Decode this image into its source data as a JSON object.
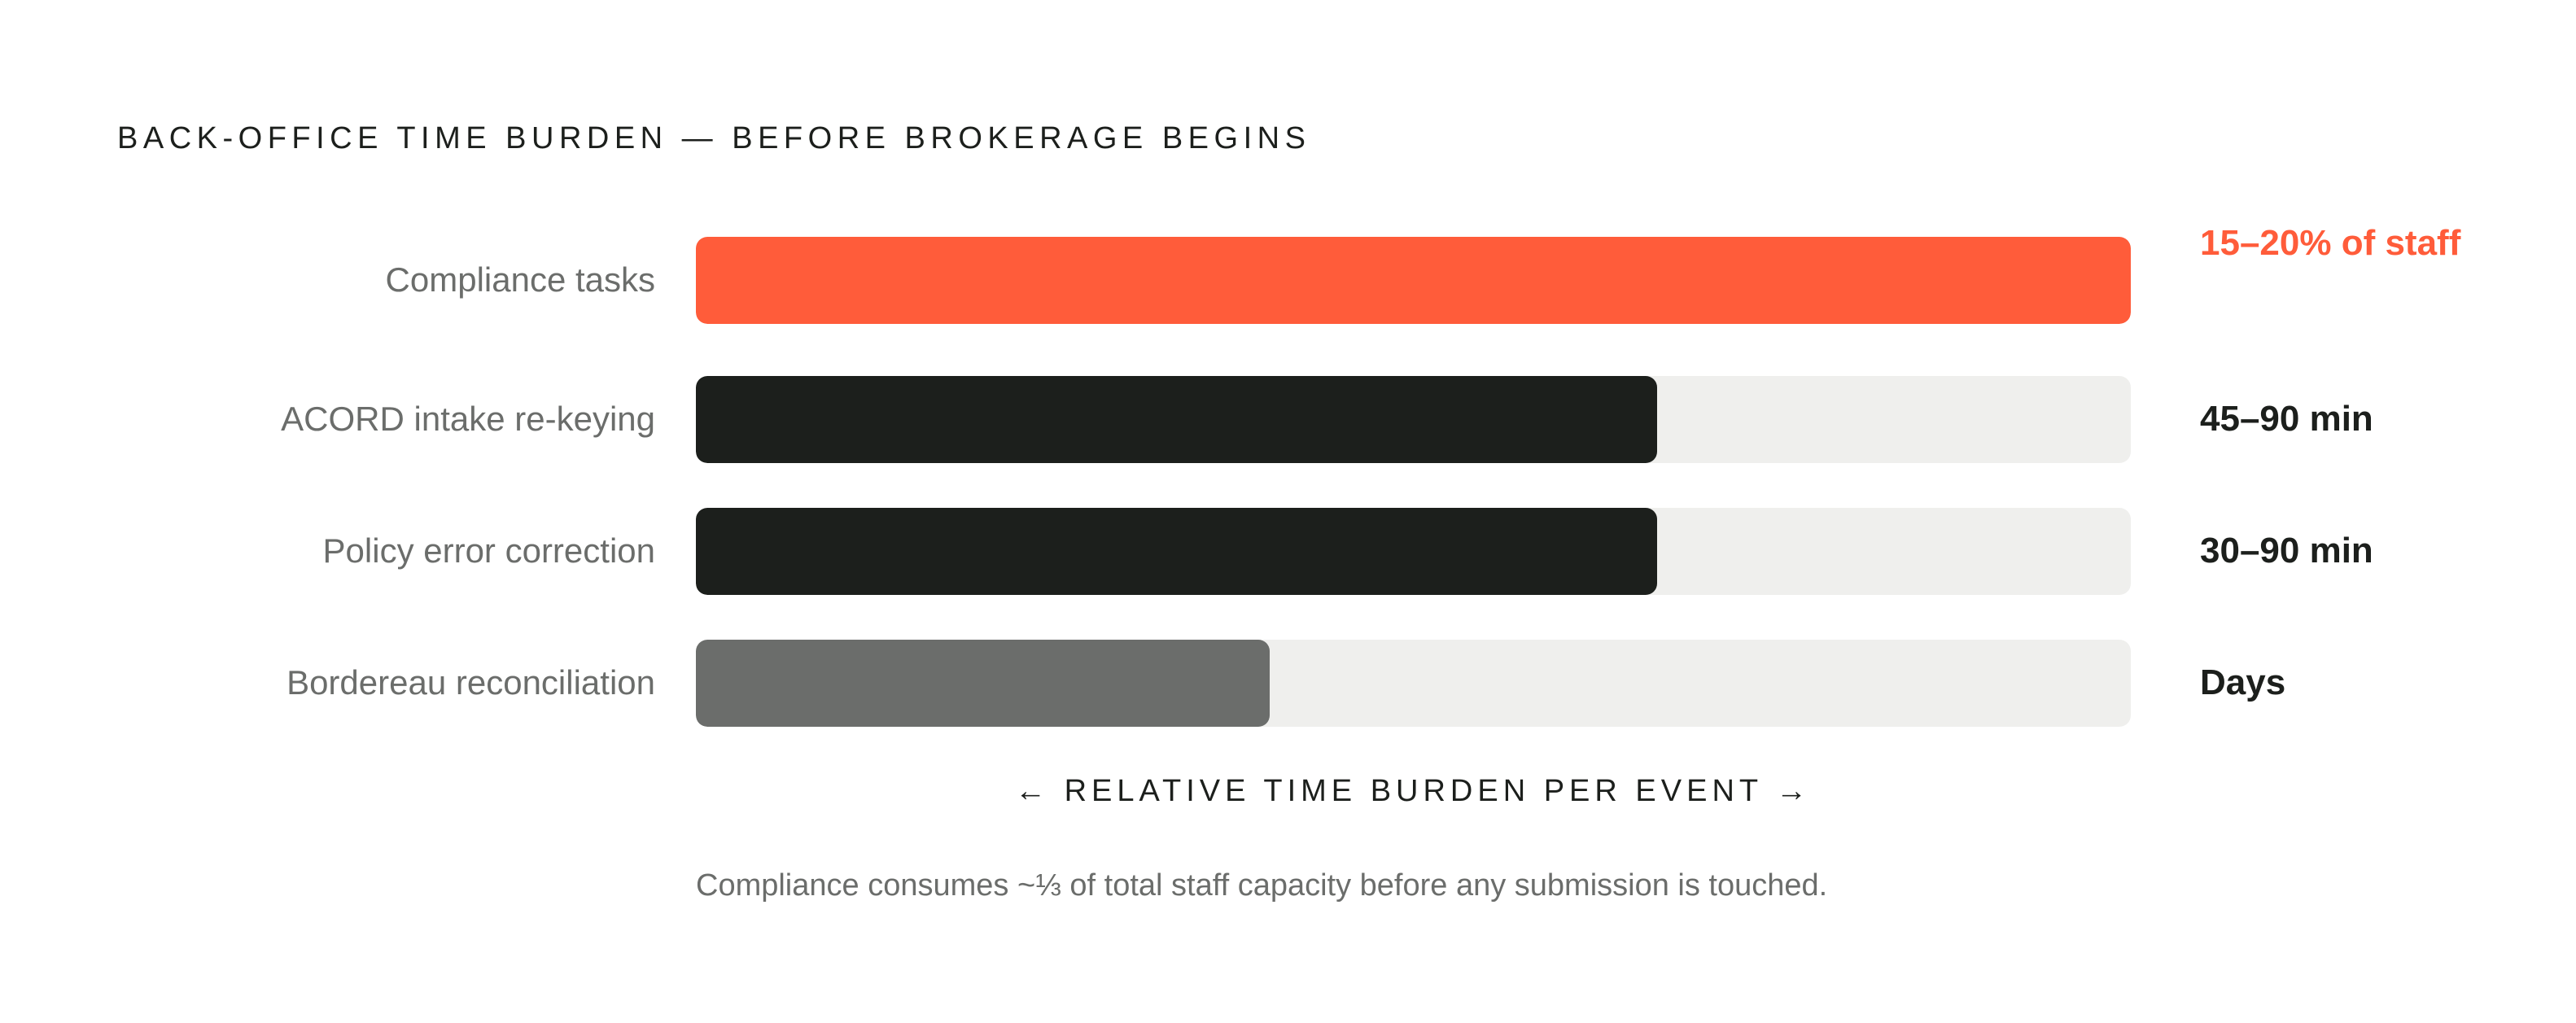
{
  "chart_data": {
    "type": "bar",
    "orientation": "horizontal",
    "title": "BACK-OFFICE TIME BURDEN — BEFORE BROKERAGE BEGINS",
    "categories": [
      "Compliance tasks",
      "ACORD intake re-keying",
      "Policy error correction",
      "Bordereau reconciliation"
    ],
    "values": [
      1.0,
      0.67,
      0.67,
      0.4
    ],
    "value_labels": [
      "15–20% of staff",
      "45–90 min",
      "30–90 min",
      "Days"
    ],
    "bar_colors": [
      "#ff5c3a",
      "#1c1f1c",
      "#1c1f1c",
      "#6b6d6b"
    ],
    "value_label_colors": [
      "#ff5c3a",
      "#1c1f1c",
      "#1c1f1c",
      "#1c1f1c"
    ],
    "track_color": "#efefed",
    "xlabel": "← RELATIVE TIME BURDEN PER EVENT →",
    "xlim": [
      0,
      1
    ],
    "grid": false,
    "footnote": "Compliance consumes ~⅓ of total staff capacity before any submission is touched."
  }
}
